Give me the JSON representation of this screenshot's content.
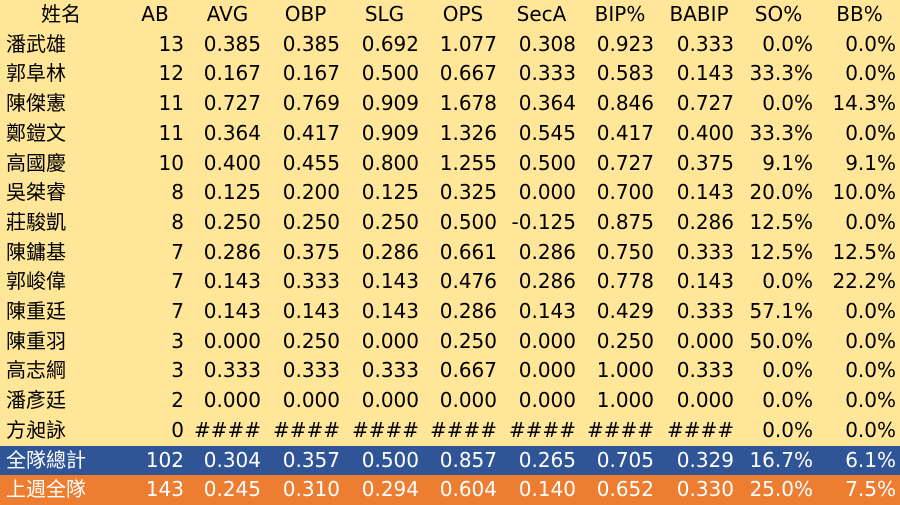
{
  "table": {
    "header": [
      "姓名",
      "AB",
      "AVG",
      "OBP",
      "SLG",
      "OPS",
      "SecA",
      "BIP%",
      "BABIP",
      "SO%",
      "BB%"
    ],
    "rows": [
      [
        "潘武雄",
        "13",
        "0.385",
        "0.385",
        "0.692",
        "1.077",
        "0.308",
        "0.923",
        "0.333",
        "0.0%",
        "0.0%"
      ],
      [
        "郭阜林",
        "12",
        "0.167",
        "0.167",
        "0.500",
        "0.667",
        "0.333",
        "0.583",
        "0.143",
        "33.3%",
        "0.0%"
      ],
      [
        "陳傑憲",
        "11",
        "0.727",
        "0.769",
        "0.909",
        "1.678",
        "0.364",
        "0.846",
        "0.727",
        "0.0%",
        "14.3%"
      ],
      [
        "鄭鎧文",
        "11",
        "0.364",
        "0.417",
        "0.909",
        "1.326",
        "0.545",
        "0.417",
        "0.400",
        "33.3%",
        "0.0%"
      ],
      [
        "高國慶",
        "10",
        "0.400",
        "0.455",
        "0.800",
        "1.255",
        "0.500",
        "0.727",
        "0.375",
        "9.1%",
        "9.1%"
      ],
      [
        "吳桀睿",
        "8",
        "0.125",
        "0.200",
        "0.125",
        "0.325",
        "0.000",
        "0.700",
        "0.143",
        "20.0%",
        "10.0%"
      ],
      [
        "莊駿凱",
        "8",
        "0.250",
        "0.250",
        "0.250",
        "0.500",
        "-0.125",
        "0.875",
        "0.286",
        "12.5%",
        "0.0%"
      ],
      [
        "陳鏞基",
        "7",
        "0.286",
        "0.375",
        "0.286",
        "0.661",
        "0.286",
        "0.750",
        "0.333",
        "12.5%",
        "12.5%"
      ],
      [
        "郭峻偉",
        "7",
        "0.143",
        "0.333",
        "0.143",
        "0.476",
        "0.286",
        "0.778",
        "0.143",
        "0.0%",
        "22.2%"
      ],
      [
        "陳重廷",
        "7",
        "0.143",
        "0.143",
        "0.143",
        "0.286",
        "0.143",
        "0.429",
        "0.333",
        "57.1%",
        "0.0%"
      ],
      [
        "陳重羽",
        "3",
        "0.000",
        "0.250",
        "0.000",
        "0.250",
        "0.000",
        "0.250",
        "0.000",
        "50.0%",
        "0.0%"
      ],
      [
        "高志綱",
        "3",
        "0.333",
        "0.333",
        "0.333",
        "0.667",
        "0.000",
        "1.000",
        "0.333",
        "0.0%",
        "0.0%"
      ],
      [
        "潘彥廷",
        "2",
        "0.000",
        "0.000",
        "0.000",
        "0.000",
        "0.000",
        "1.000",
        "0.000",
        "0.0%",
        "0.0%"
      ],
      [
        "方昶詠",
        "0",
        "####",
        "####",
        "####",
        "####",
        "####",
        "####",
        "####",
        "0.0%",
        "0.0%"
      ]
    ],
    "team_total": [
      "全隊總計",
      "102",
      "0.304",
      "0.357",
      "0.500",
      "0.857",
      "0.265",
      "0.705",
      "0.329",
      "16.7%",
      "6.1%"
    ],
    "last_week_total": [
      "上週全隊",
      "143",
      "0.245",
      "0.310",
      "0.294",
      "0.604",
      "0.140",
      "0.652",
      "0.330",
      "25.0%",
      "7.5%"
    ]
  }
}
